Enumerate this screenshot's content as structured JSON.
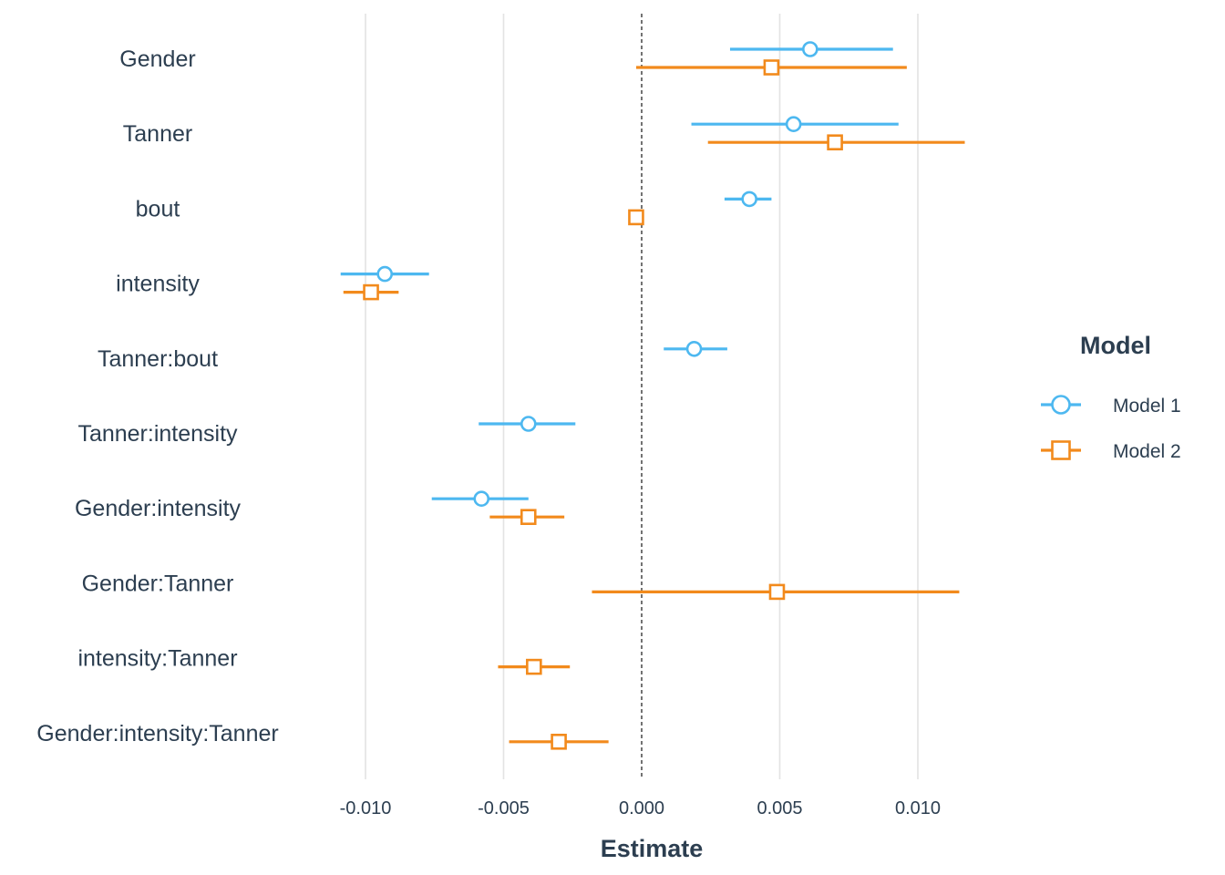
{
  "chart_data": {
    "type": "scatter",
    "subtype": "coefficient-plot",
    "title": "",
    "xlabel": "Estimate",
    "ylabel": "",
    "xlim": [
      -0.0101,
      0.0101
    ],
    "x_ticks": [
      -0.01,
      -0.005,
      0.0,
      0.005,
      0.01
    ],
    "x_tick_labels": [
      "-0.010",
      "-0.005",
      "0.000",
      "0.005",
      "0.010"
    ],
    "reference_line": 0,
    "grid": "vertical-major",
    "legend": {
      "title": "Model",
      "position": "right"
    },
    "terms": [
      "Gender",
      "Tanner",
      "bout",
      "intensity",
      "Tanner:bout",
      "Tanner:intensity",
      "Gender:intensity",
      "Gender:Tanner",
      "intensity:Tanner",
      "Gender:intensity:Tanner"
    ],
    "series": [
      {
        "name": "Model 1",
        "color": "#4db8f0",
        "marker": "circle",
        "points": [
          {
            "term": "Gender",
            "estimate": 0.0061,
            "low": 0.0032,
            "high": 0.0091
          },
          {
            "term": "Tanner",
            "estimate": 0.0055,
            "low": 0.0018,
            "high": 0.0093
          },
          {
            "term": "bout",
            "estimate": 0.0039,
            "low": 0.003,
            "high": 0.0047
          },
          {
            "term": "intensity",
            "estimate": -0.0093,
            "low": -0.0109,
            "high": -0.0077
          },
          {
            "term": "Tanner:bout",
            "estimate": 0.0019,
            "low": 0.0008,
            "high": 0.0031
          },
          {
            "term": "Tanner:intensity",
            "estimate": -0.0041,
            "low": -0.0059,
            "high": -0.0024
          },
          {
            "term": "Gender:intensity",
            "estimate": -0.0058,
            "low": -0.0076,
            "high": -0.0041
          }
        ]
      },
      {
        "name": "Model 2",
        "color": "#f28a1c",
        "marker": "square",
        "points": [
          {
            "term": "Gender",
            "estimate": 0.0047,
            "low": -0.0002,
            "high": 0.0096
          },
          {
            "term": "Tanner",
            "estimate": 0.007,
            "low": 0.0024,
            "high": 0.0117
          },
          {
            "term": "bout",
            "estimate": -0.0002,
            "low": -0.0003,
            "high": -0.0001
          },
          {
            "term": "intensity",
            "estimate": -0.0098,
            "low": -0.0108,
            "high": -0.0088
          },
          {
            "term": "Gender:intensity",
            "estimate": -0.0041,
            "low": -0.0055,
            "high": -0.0028
          },
          {
            "term": "Gender:Tanner",
            "estimate": 0.0049,
            "low": -0.0018,
            "high": 0.0115
          },
          {
            "term": "intensity:Tanner",
            "estimate": -0.0039,
            "low": -0.0052,
            "high": -0.0026
          },
          {
            "term": "Gender:intensity:Tanner",
            "estimate": -0.003,
            "low": -0.0048,
            "high": -0.0012
          }
        ]
      }
    ]
  }
}
